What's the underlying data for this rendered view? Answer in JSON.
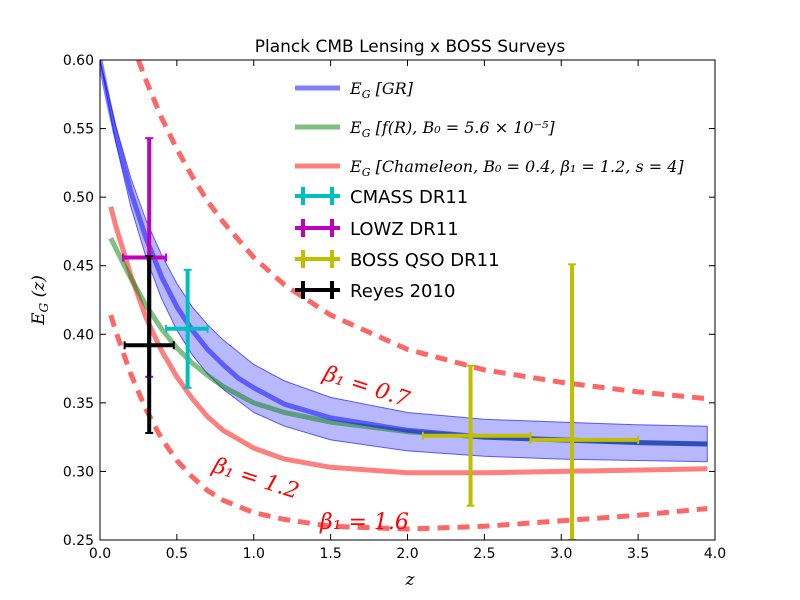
{
  "chart_data": {
    "type": "line",
    "title": "Planck CMB Lensing x BOSS Surveys",
    "xlabel": "z",
    "ylabel": "E_G (z)",
    "ylabel_main": "E",
    "ylabel_sub": "G",
    "ylabel_rest": " (z)",
    "xlim": [
      0.0,
      4.0
    ],
    "ylim": [
      0.25,
      0.6
    ],
    "xticks": [
      "0.0",
      "0.5",
      "1.0",
      "1.5",
      "2.0",
      "2.5",
      "3.0",
      "3.5",
      "4.0"
    ],
    "xtick_values": [
      0.0,
      0.5,
      1.0,
      1.5,
      2.0,
      2.5,
      3.0,
      3.5,
      4.0
    ],
    "yticks": [
      "0.25",
      "0.30",
      "0.35",
      "0.40",
      "0.45",
      "0.50",
      "0.55",
      "0.60"
    ],
    "ytick_values": [
      0.25,
      0.3,
      0.35,
      0.4,
      0.45,
      0.5,
      0.55,
      0.6
    ],
    "colors": {
      "gr": "#0000ff",
      "fr": "#008000",
      "chameleon": "#ff0000",
      "band_fill": "#0000ff",
      "cmass": "#00bfbf",
      "lowz": "#bf00bf",
      "qso": "#bfbf00",
      "reyes": "#000000",
      "annotation": "#ff0000"
    },
    "band": {
      "name": "GR uncertainty band",
      "x": [
        0.0,
        0.1,
        0.2,
        0.3,
        0.4,
        0.5,
        0.6,
        0.7,
        0.8,
        1.0,
        1.2,
        1.5,
        2.0,
        2.5,
        3.0,
        3.5,
        3.95
      ],
      "upper": [
        0.6,
        0.553,
        0.514,
        0.483,
        0.458,
        0.437,
        0.42,
        0.407,
        0.396,
        0.378,
        0.366,
        0.354,
        0.343,
        0.338,
        0.336,
        0.334,
        0.333
      ],
      "lower": [
        0.6,
        0.541,
        0.493,
        0.456,
        0.426,
        0.403,
        0.385,
        0.371,
        0.36,
        0.343,
        0.333,
        0.323,
        0.315,
        0.311,
        0.309,
        0.308,
        0.307
      ]
    },
    "series": [
      {
        "name": "GR",
        "legend_main": "E",
        "legend_sub": "G",
        "legend_rest": " [GR]",
        "style": "solid",
        "color_key": "gr",
        "x": [
          0.0,
          0.05,
          0.1,
          0.2,
          0.3,
          0.4,
          0.5,
          0.6,
          0.7,
          0.8,
          0.9,
          1.0,
          1.2,
          1.5,
          2.0,
          2.5,
          3.0,
          3.5,
          3.95
        ],
        "y": [
          0.6,
          0.572,
          0.547,
          0.504,
          0.47,
          0.442,
          0.42,
          0.403,
          0.389,
          0.378,
          0.368,
          0.361,
          0.349,
          0.339,
          0.33,
          0.325,
          0.323,
          0.321,
          0.32
        ]
      },
      {
        "name": "f(R)",
        "legend_main": "E",
        "legend_sub": "G",
        "legend_rest": " [f(R), B₀ = 5.6 × 10⁻⁵]",
        "style": "solid",
        "color_key": "fr",
        "x": [
          0.07,
          0.15,
          0.2,
          0.3,
          0.4,
          0.5,
          0.6,
          0.7,
          0.8,
          1.0,
          1.2,
          1.5,
          2.0,
          2.5,
          3.0,
          3.5,
          3.95
        ],
        "y": [
          0.47,
          0.452,
          0.441,
          0.421,
          0.404,
          0.39,
          0.379,
          0.37,
          0.362,
          0.35,
          0.343,
          0.336,
          0.329,
          0.325,
          0.323,
          0.321,
          0.32
        ]
      },
      {
        "name": "Chameleon",
        "legend_main": "E",
        "legend_sub": "G",
        "legend_rest": " [Chameleon, B₀ = 0.4, β₁ = 1.2, s = 4]",
        "style": "solid",
        "color_key": "chameleon",
        "annotation": "β₁ = 1.2",
        "x": [
          0.07,
          0.1,
          0.2,
          0.3,
          0.4,
          0.5,
          0.6,
          0.7,
          0.8,
          1.0,
          1.2,
          1.5,
          2.0,
          2.5,
          3.0,
          3.5,
          3.95
        ],
        "y": [
          0.493,
          0.48,
          0.443,
          0.412,
          0.388,
          0.369,
          0.353,
          0.34,
          0.33,
          0.317,
          0.309,
          0.303,
          0.299,
          0.299,
          0.3,
          0.301,
          0.302
        ]
      },
      {
        "name": "Chameleon beta1=0.7",
        "style": "dashed",
        "color_key": "chameleon",
        "annotation": "β₁ = 0.7",
        "x": [
          0.25,
          0.3,
          0.4,
          0.5,
          0.6,
          0.7,
          0.8,
          1.0,
          1.2,
          1.5,
          2.0,
          2.5,
          3.0,
          3.5,
          3.95
        ],
        "y": [
          0.6,
          0.585,
          0.558,
          0.535,
          0.515,
          0.497,
          0.482,
          0.456,
          0.436,
          0.414,
          0.389,
          0.374,
          0.365,
          0.358,
          0.353
        ]
      },
      {
        "name": "Chameleon beta1=1.6",
        "style": "dashed",
        "color_key": "chameleon",
        "annotation": "β₁ = 1.6",
        "x": [
          0.07,
          0.1,
          0.2,
          0.3,
          0.4,
          0.5,
          0.6,
          0.7,
          0.8,
          1.0,
          1.2,
          1.5,
          2.0,
          2.5,
          3.0,
          3.5,
          3.95
        ],
        "y": [
          0.414,
          0.403,
          0.371,
          0.345,
          0.324,
          0.308,
          0.296,
          0.286,
          0.279,
          0.27,
          0.265,
          0.26,
          0.258,
          0.26,
          0.264,
          0.268,
          0.273
        ]
      }
    ],
    "annotations": [
      {
        "text": "β₁ = 0.7",
        "x": 1.72,
        "y": 0.357,
        "angle": 18
      },
      {
        "text": "β₁ = 1.2",
        "x": 1.0,
        "y": 0.29,
        "angle": 18
      },
      {
        "text": "β₁ = 1.6",
        "x": 1.72,
        "y": 0.258,
        "angle": 0
      }
    ],
    "datasets": [
      {
        "name": "CMASS DR11",
        "color_key": "cmass",
        "x": 0.57,
        "y": 0.404,
        "xlo": 0.43,
        "xhi": 0.7,
        "ylo": 0.361,
        "yhi": 0.447
      },
      {
        "name": "LOWZ DR11",
        "color_key": "lowz",
        "x": 0.32,
        "y": 0.456,
        "xlo": 0.15,
        "xhi": 0.43,
        "ylo": 0.369,
        "yhi": 0.543
      },
      {
        "name": "BOSS QSO DR11",
        "color_key": "qso",
        "x": 2.41,
        "y": 0.326,
        "xlo": 2.1,
        "xhi": 2.8,
        "ylo": 0.275,
        "yhi": 0.377
      },
      {
        "name": "BOSS QSO DR11",
        "color_key": "qso",
        "x": 3.07,
        "y": 0.323,
        "xlo": 2.8,
        "xhi": 3.5,
        "ylo": 0.25,
        "yhi": 0.451
      },
      {
        "name": "Reyes 2010",
        "color_key": "reyes",
        "x": 0.32,
        "y": 0.392,
        "xlo": 0.16,
        "xhi": 0.48,
        "ylo": 0.328,
        "yhi": 0.457
      }
    ],
    "legend_position": "top-right",
    "grid": false
  }
}
